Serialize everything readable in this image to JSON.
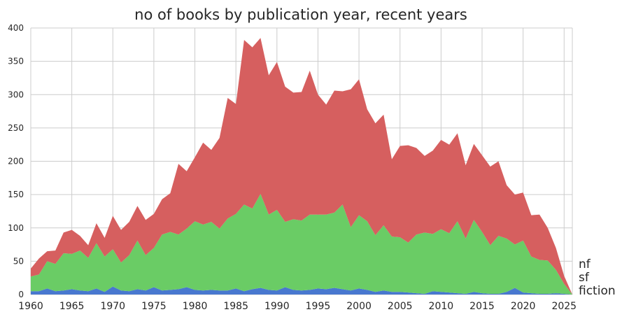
{
  "chart_data": {
    "type": "area",
    "stacked": true,
    "title": "no of books by publication year, recent years",
    "xlabel": "",
    "ylabel": "",
    "xlim": [
      1960,
      2026
    ],
    "ylim": [
      0,
      400
    ],
    "grid": true,
    "legend": "end-labels-right",
    "x": [
      1960,
      1961,
      1962,
      1963,
      1964,
      1965,
      1966,
      1967,
      1968,
      1969,
      1970,
      1971,
      1972,
      1973,
      1974,
      1975,
      1976,
      1977,
      1978,
      1979,
      1980,
      1981,
      1982,
      1983,
      1984,
      1985,
      1986,
      1987,
      1988,
      1989,
      1990,
      1991,
      1992,
      1993,
      1994,
      1995,
      1996,
      1997,
      1998,
      1999,
      2000,
      2001,
      2002,
      2003,
      2004,
      2005,
      2006,
      2007,
      2008,
      2009,
      2010,
      2011,
      2012,
      2013,
      2014,
      2015,
      2016,
      2017,
      2018,
      2019,
      2020,
      2021,
      2022,
      2023,
      2024,
      2025,
      2026
    ],
    "yticks": [
      0,
      50,
      100,
      150,
      200,
      250,
      300,
      350,
      400
    ],
    "xticks": [
      1960,
      1965,
      1970,
      1975,
      1980,
      1985,
      1990,
      1995,
      2000,
      2005,
      2010,
      2015,
      2020,
      2025
    ],
    "series": [
      {
        "name": "fiction",
        "color": "#4878cf",
        "values": [
          5,
          5,
          9,
          5,
          6,
          8,
          6,
          5,
          9,
          4,
          12,
          6,
          5,
          8,
          6,
          11,
          6,
          7,
          8,
          11,
          7,
          6,
          7,
          6,
          6,
          9,
          5,
          8,
          10,
          7,
          6,
          11,
          7,
          6,
          7,
          9,
          8,
          10,
          8,
          6,
          9,
          7,
          4,
          6,
          4,
          4,
          3,
          2,
          1,
          5,
          4,
          3,
          2,
          1,
          4,
          2,
          1,
          1,
          4,
          10,
          3,
          2,
          1,
          1,
          2,
          1,
          0
        ]
      },
      {
        "name": "sf",
        "color": "#6acc65",
        "values": [
          22,
          25,
          41,
          41,
          56,
          53,
          60,
          50,
          68,
          53,
          56,
          42,
          54,
          73,
          53,
          59,
          84,
          87,
          82,
          88,
          103,
          99,
          102,
          93,
          108,
          112,
          130,
          121,
          141,
          113,
          121,
          98,
          106,
          105,
          113,
          111,
          112,
          113,
          127,
          95,
          110,
          103,
          85,
          98,
          83,
          82,
          75,
          88,
          92,
          86,
          94,
          89,
          108,
          83,
          108,
          92,
          73,
          87,
          80,
          65,
          78,
          55,
          51,
          50,
          35,
          15,
          0
        ]
      },
      {
        "name": "nf",
        "color": "#d65f5f",
        "values": [
          12,
          24,
          15,
          20,
          31,
          36,
          22,
          19,
          30,
          28,
          50,
          49,
          50,
          52,
          53,
          51,
          53,
          58,
          106,
          86,
          96,
          123,
          108,
          136,
          181,
          165,
          247,
          242,
          234,
          209,
          222,
          203,
          190,
          193,
          216,
          180,
          165,
          183,
          170,
          207,
          204,
          168,
          168,
          166,
          116,
          137,
          146,
          130,
          115,
          125,
          134,
          133,
          132,
          110,
          114,
          115,
          118,
          112,
          80,
          75,
          72,
          62,
          68,
          49,
          33,
          12,
          0
        ]
      }
    ]
  }
}
